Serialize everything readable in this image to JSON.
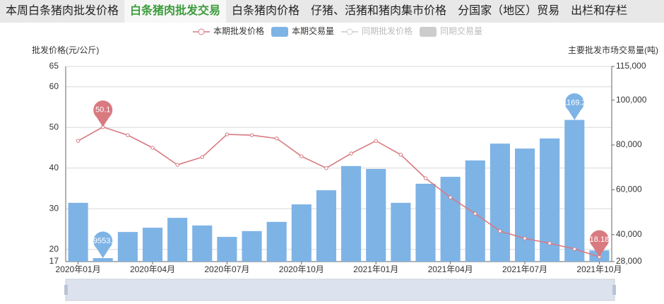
{
  "tabs": [
    "本周白条猪肉批发价格",
    "白条猪肉批发交易",
    "白条猪肉价格",
    "仔猪、活猪和猪肉集市价格",
    "分国家（地区）贸易",
    "出栏和存栏"
  ],
  "active_tab": 1,
  "chart_data": {
    "type": "bar",
    "ylabel": "批发价格(元/公斤)",
    "y2label": "主要批发市场交易量(吨)",
    "categories": [
      "2020年01月",
      null,
      null,
      "2020年04月",
      null,
      null,
      "2020年07月",
      null,
      null,
      "2020年10月",
      null,
      null,
      "2021年01月",
      null,
      null,
      "2021年04月",
      null,
      null,
      "2021年07月",
      null,
      null,
      "2021年10月"
    ],
    "ylim": [
      17,
      65
    ],
    "yticks": [
      17,
      20,
      30,
      40,
      50,
      60,
      65
    ],
    "y2lim": [
      28000,
      115000
    ],
    "y2ticks": [
      {
        "value": 28000,
        "label": "28,000"
      },
      {
        "value": 40000,
        "label": "40,000"
      },
      {
        "value": 60000,
        "label": "60,000"
      },
      {
        "value": 80000,
        "label": "80,000"
      },
      {
        "value": 100000,
        "label": "100,000"
      },
      {
        "value": 115000,
        "label": "115,000"
      }
    ],
    "grid": true,
    "series": [
      {
        "name": "本期批发价格",
        "type": "line",
        "color": "#d87a80",
        "values": [
          46.7,
          50.1,
          48.1,
          45.0,
          40.8,
          42.7,
          48.3,
          48.1,
          47.3,
          42.9,
          40.0,
          43.6,
          46.7,
          43.3,
          37.5,
          32.8,
          28.8,
          24.5,
          22.7,
          21.5,
          20.1,
          18.18
        ]
      },
      {
        "name": "本期交易量",
        "type": "bar",
        "axis": "y2",
        "color": "#7eb3e6",
        "values": [
          54200,
          29553.7,
          41200,
          43100,
          47500,
          44100,
          39000,
          41600,
          45700,
          53500,
          59800,
          70600,
          69300,
          54200,
          62700,
          65800,
          73100,
          80600,
          78400,
          82900,
          91169.25,
          33000
        ]
      }
    ],
    "inactive_series": [
      {
        "name": "同期批发价格",
        "type": "line",
        "color": "#cccccc"
      },
      {
        "name": "同期交易量",
        "type": "bar",
        "color": "#cccccc"
      }
    ]
  }
}
